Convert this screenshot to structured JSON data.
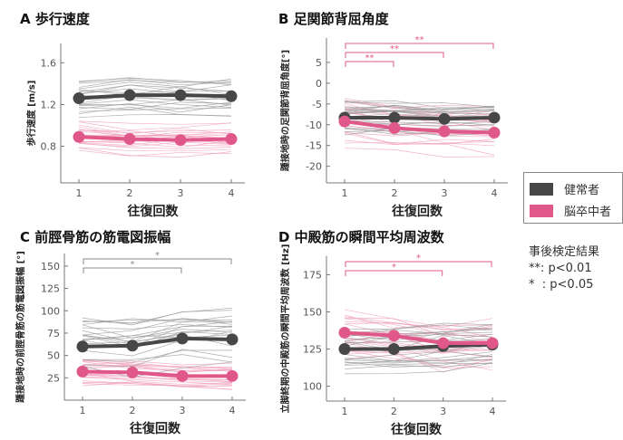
{
  "colors": {
    "healthy": "#474747",
    "stroke": "#e0588a",
    "healthy_light": "#9a9a9a",
    "stroke_light": "#f0a0bb"
  },
  "legend": {
    "healthy": "健常者",
    "stroke": "脳卒中者"
  },
  "posthoc": {
    "title": "事後検定結果",
    "p01": "**: p<0.01",
    "p05": "*  : p<0.05"
  },
  "chart_data": [
    {
      "type": "line",
      "panel": "A",
      "title": "歩行速度",
      "xlabel": "往復回数",
      "ylabel": "歩行速度 [m/s]",
      "x": [
        1,
        2,
        3,
        4
      ],
      "ylim": [
        0.45,
        1.75
      ],
      "yticks": [
        0.8,
        1.2,
        1.6
      ],
      "ytick_labels": [
        "0.8",
        "1.2",
        "1.6"
      ],
      "series": [
        {
          "name": "健常者",
          "values": [
            1.26,
            1.29,
            1.29,
            1.28
          ]
        },
        {
          "name": "脳卒中者",
          "values": [
            0.89,
            0.87,
            0.86,
            0.87
          ]
        }
      ],
      "spread": {
        "healthy": 0.16,
        "stroke": 0.14
      },
      "brackets": []
    },
    {
      "type": "line",
      "panel": "B",
      "title": "足関節背屈角度",
      "xlabel": "往復回数",
      "ylabel": "踵接地時の足関節背屈角度[°]",
      "x": [
        1,
        2,
        3,
        4
      ],
      "ylim": [
        -24,
        10
      ],
      "yticks": [
        -20,
        -15,
        -10,
        -5,
        0,
        5
      ],
      "ytick_labels": [
        "-20",
        "-15",
        "-10",
        "-5",
        "0",
        "5"
      ],
      "series": [
        {
          "name": "健常者",
          "values": [
            -8.3,
            -8.3,
            -8.6,
            -8.3
          ]
        },
        {
          "name": "脳卒中者",
          "values": [
            -9.2,
            -10.8,
            -11.6,
            -11.9
          ]
        }
      ],
      "spread": {
        "healthy": 3.5,
        "stroke": 5
      },
      "brackets": [
        {
          "from": 1,
          "to": 2,
          "label": "**",
          "group": "stroke"
        },
        {
          "from": 1,
          "to": 3,
          "label": "**",
          "group": "stroke"
        },
        {
          "from": 1,
          "to": 4,
          "label": "**",
          "group": "stroke"
        }
      ]
    },
    {
      "type": "line",
      "panel": "C",
      "title": "前脛骨筋の筋電図振幅",
      "xlabel": "往復回数",
      "ylabel": "踵接地時の前脛骨筋の筋電図振幅 [°]",
      "x": [
        1,
        2,
        3,
        4
      ],
      "ylim": [
        0,
        160
      ],
      "yticks": [
        25,
        50,
        75,
        100,
        125,
        150
      ],
      "ytick_labels": [
        "25",
        "50",
        "75",
        "100",
        "125",
        "150"
      ],
      "series": [
        {
          "name": "健常者",
          "values": [
            60,
            61,
            69,
            68
          ]
        },
        {
          "name": "脳卒中者",
          "values": [
            32,
            31,
            27,
            27
          ]
        }
      ],
      "spread": {
        "healthy": 30,
        "stroke": 14
      },
      "brackets": [
        {
          "from": 1,
          "to": 3,
          "label": "*",
          "group": "healthy"
        },
        {
          "from": 1,
          "to": 4,
          "label": "*",
          "group": "healthy"
        }
      ]
    },
    {
      "type": "line",
      "panel": "D",
      "title": "中殿筋の瞬間平均周波数",
      "xlabel": "往復回数",
      "ylabel": "立脚終期の中殿筋の瞬間平均周波数 [Hz]",
      "x": [
        1,
        2,
        3,
        4
      ],
      "ylim": [
        90,
        185
      ],
      "yticks": [
        100,
        125,
        150,
        175
      ],
      "ytick_labels": [
        "100",
        "125",
        "150",
        "175"
      ],
      "series": [
        {
          "name": "健常者",
          "values": [
            125,
            125,
            127,
            128
          ]
        },
        {
          "name": "脳卒中者",
          "values": [
            136,
            134,
            129,
            129
          ]
        }
      ],
      "spread": {
        "healthy": 14,
        "stroke": 16
      },
      "brackets": [
        {
          "from": 1,
          "to": 3,
          "label": "*",
          "group": "stroke"
        },
        {
          "from": 1,
          "to": 4,
          "label": "*",
          "group": "stroke"
        }
      ]
    }
  ]
}
